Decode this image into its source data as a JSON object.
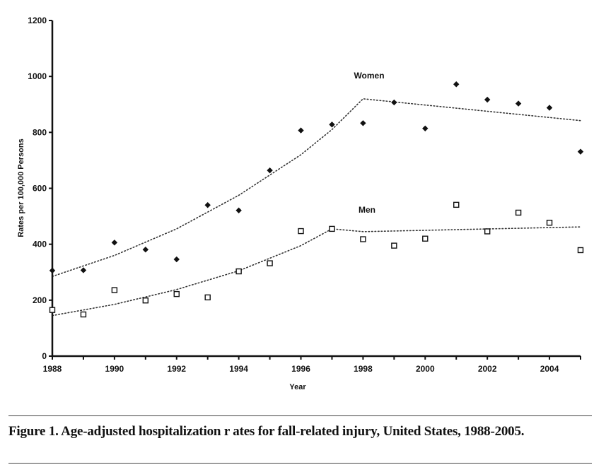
{
  "chart_data": {
    "type": "scatter",
    "title": "",
    "xlabel": "Year",
    "ylabel": "Rates per 100,000 Persons",
    "xlim": [
      1988,
      2005
    ],
    "ylim": [
      0,
      1200
    ],
    "x_ticks": [
      1988,
      1990,
      1992,
      1994,
      1996,
      1998,
      2000,
      2002,
      2004
    ],
    "x_minor_ticks": [
      1989,
      1991,
      1993,
      1995,
      1997,
      1999,
      2001,
      2003,
      2005
    ],
    "y_ticks": [
      0,
      200,
      400,
      600,
      800,
      1000,
      1200
    ],
    "grid": false,
    "x": [
      1988,
      1989,
      1990,
      1991,
      1992,
      1993,
      1994,
      1995,
      1996,
      1997,
      1998,
      1999,
      2000,
      2001,
      2002,
      2003,
      2004,
      2005
    ],
    "series": [
      {
        "name": "Women",
        "marker": "filled-diamond",
        "color": "#111111",
        "values": [
          306,
          307,
          406,
          381,
          346,
          540,
          521,
          664,
          807,
          828,
          833,
          907,
          814,
          972,
          917,
          903,
          888,
          731
        ],
        "trend": {
          "style": "dotted",
          "x": [
            1988,
            1990,
            1992,
            1994,
            1996,
            1997,
            1998,
            2005
          ],
          "y": [
            285,
            360,
            455,
            575,
            720,
            810,
            920,
            842
          ]
        }
      },
      {
        "name": "Men",
        "marker": "open-square",
        "color": "#111111",
        "values": [
          165,
          149,
          236,
          199,
          222,
          210,
          303,
          332,
          447,
          455,
          418,
          395,
          420,
          541,
          446,
          513,
          477,
          379
        ],
        "trend": {
          "style": "dotted",
          "x": [
            1988,
            1990,
            1992,
            1994,
            1996,
            1997,
            1998,
            2005
          ],
          "y": [
            145,
            185,
            238,
            305,
            395,
            455,
            445,
            462
          ]
        }
      }
    ]
  },
  "caption": {
    "text": "Figure 1. Age-adjusted hospitalization r ates for fall-related injury, United States, 1988-2005."
  }
}
